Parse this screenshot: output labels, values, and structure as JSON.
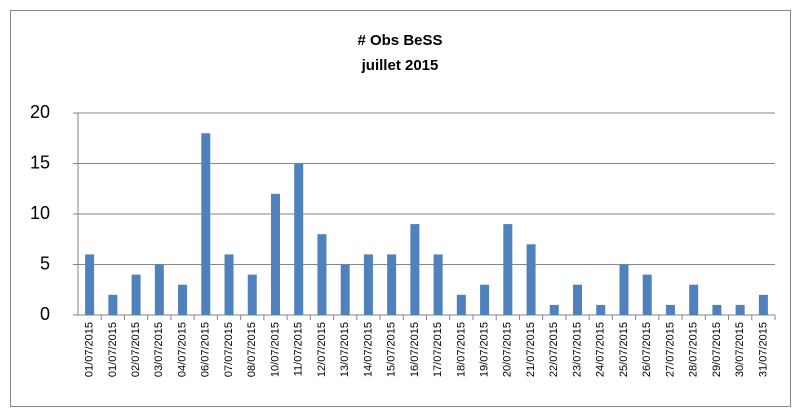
{
  "chart_data": {
    "type": "bar",
    "title": "# Obs BeSS",
    "subtitle": "juillet 2015",
    "categories": [
      "01/07/2015",
      "01/07/2015",
      "02/07/2015",
      "03/07/2015",
      "04/07/2015",
      "06/07/2015",
      "07/07/2015",
      "08/07/2015",
      "10/07/2015",
      "11/07/2015",
      "12/07/2015",
      "13/07/2015",
      "14/07/2015",
      "15/07/2015",
      "16/07/2015",
      "17/07/2015",
      "18/07/2015",
      "19/07/2015",
      "20/07/2015",
      "21/07/2015",
      "22/07/2015",
      "23/07/2015",
      "24/07/2015",
      "25/07/2015",
      "26/07/2015",
      "27/07/2015",
      "28/07/2015",
      "29/07/2015",
      "30/07/2015",
      "31/07/2015"
    ],
    "values": [
      6,
      2,
      4,
      5,
      3,
      18,
      6,
      4,
      12,
      15,
      8,
      5,
      6,
      6,
      9,
      6,
      2,
      3,
      9,
      7,
      1,
      3,
      1,
      5,
      4,
      1,
      3,
      1,
      1,
      2
    ],
    "color": "#4f81bd",
    "ylim": [
      0,
      20
    ],
    "yticks": [
      0,
      5,
      10,
      15,
      20
    ],
    "grid": true
  }
}
